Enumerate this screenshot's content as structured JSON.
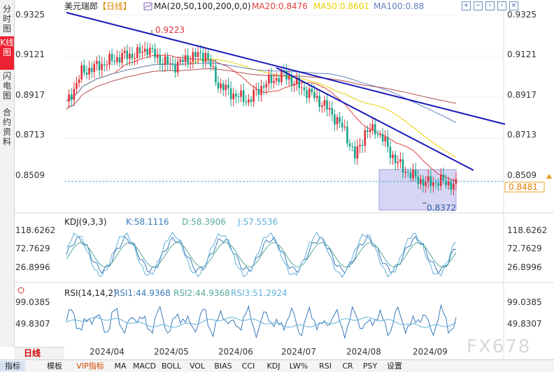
{
  "sidebar": {
    "items": [
      {
        "label": "分时图",
        "active": false
      },
      {
        "label": "K线图",
        "active": true
      },
      {
        "label": "闪电图",
        "active": false
      },
      {
        "label": "合约资料",
        "active": false
      }
    ]
  },
  "header": {
    "symbol": "美元瑞郎",
    "period_tag": "【日线】",
    "ma_label": "MA(20,50,100,200,0,0)",
    "ma20": "MA20:0.8476",
    "ma50": "MA50:0.8601",
    "ma100": "MA100:0.88",
    "colors": {
      "ma20": "#e04040",
      "ma50": "#e8d000",
      "ma100": "#6080c0"
    }
  },
  "icons": [
    "zoom-in-icon",
    "zoom-out-icon",
    "arrow-left-icon",
    "arrow-right-icon",
    "close-icon"
  ],
  "period_button": "日线",
  "tabs": [
    "指标",
    "模板",
    "VIP指标",
    "MA",
    "MACD",
    "BOLL",
    "VOL",
    "BIAS",
    "CCI",
    "KDJ",
    "LW%",
    "RSI",
    "CR",
    "PSY",
    "设置"
  ],
  "watermark": "FX678",
  "chart_data": [
    {
      "type": "candlestick",
      "symbol": "美元瑞郎",
      "period": "日线",
      "y_ticks": [
        "0.9325",
        "0.9121",
        "0.8917",
        "0.8713",
        "0.8509"
      ],
      "ylim": [
        0.836,
        0.934
      ],
      "x_ticks": [
        "2024/04",
        "2024/05",
        "2024/06",
        "2024/07",
        "2024/08",
        "2024/09"
      ],
      "current_price": "0.8481",
      "annotations": {
        "high": "0.9223",
        "low": "0.8372"
      },
      "series": [
        {
          "name": "MA20",
          "value": "0.8476",
          "color": "#e04040"
        },
        {
          "name": "MA50",
          "value": "0.8601",
          "color": "#e8d000"
        },
        {
          "name": "MA100",
          "value": "0.88",
          "color": "#6080c0"
        }
      ],
      "colors": {
        "up": "#e0303a",
        "down": "#15a58a",
        "trendline": "#1a1ab8",
        "box": "#c8c8f0"
      }
    },
    {
      "type": "line",
      "title": "KDJ(9,3,3)",
      "values": {
        "K": "K:58.1116",
        "D": "D:58.3906",
        "J": "J:57.5536"
      },
      "y_ticks": [
        "118.6262",
        "72.7629",
        "26.8996"
      ],
      "colors": {
        "K": "#3a7ab8",
        "D": "#55aa99",
        "J": "#5fb0d8"
      }
    },
    {
      "type": "line",
      "title": "RSI(14,14,2)",
      "values": {
        "RSI1": "RSI1:44.9368",
        "RSI2": "RSI2:44.9368",
        "RSI3": "RSI3:51.2924"
      },
      "y_ticks": [
        "99.0385",
        "49.8307"
      ],
      "colors": {
        "RSI1": "#3a7ab8",
        "RSI2": "#55aa99",
        "RSI3": "#5fb0d8"
      }
    }
  ]
}
